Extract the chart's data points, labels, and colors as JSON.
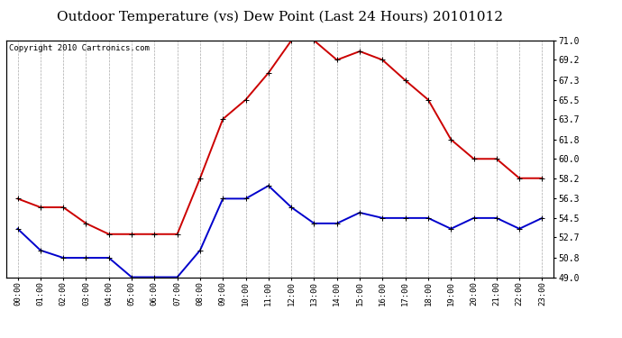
{
  "title": "Outdoor Temperature (vs) Dew Point (Last 24 Hours) 20101012",
  "copyright": "Copyright 2010 Cartronics.com",
  "hours": [
    "00:00",
    "01:00",
    "02:00",
    "03:00",
    "04:00",
    "05:00",
    "06:00",
    "07:00",
    "08:00",
    "09:00",
    "10:00",
    "11:00",
    "12:00",
    "13:00",
    "14:00",
    "15:00",
    "16:00",
    "17:00",
    "18:00",
    "19:00",
    "20:00",
    "21:00",
    "22:00",
    "23:00"
  ],
  "temp": [
    56.3,
    55.5,
    55.5,
    54.0,
    53.0,
    53.0,
    53.0,
    53.0,
    58.2,
    63.7,
    65.5,
    68.0,
    71.0,
    71.0,
    69.2,
    70.0,
    69.2,
    67.3,
    65.5,
    61.8,
    60.0,
    60.0,
    58.2,
    58.2
  ],
  "dew": [
    53.5,
    51.5,
    50.8,
    50.8,
    50.8,
    49.0,
    49.0,
    49.0,
    51.5,
    56.3,
    56.3,
    57.5,
    55.5,
    54.0,
    54.0,
    55.0,
    54.5,
    54.5,
    54.5,
    53.5,
    54.5,
    54.5,
    53.5,
    54.5
  ],
  "temp_color": "#cc0000",
  "dew_color": "#0000cc",
  "bg_color": "#ffffff",
  "grid_color": "#aaaaaa",
  "ylim": [
    49.0,
    71.0
  ],
  "yticks": [
    49.0,
    50.8,
    52.7,
    54.5,
    56.3,
    58.2,
    60.0,
    61.8,
    63.7,
    65.5,
    67.3,
    69.2,
    71.0
  ],
  "ytick_labels": [
    "49.0",
    "50.8",
    "52.7",
    "54.5",
    "56.3",
    "58.2",
    "60.0",
    "61.8",
    "63.7",
    "65.5",
    "67.3",
    "69.2",
    "71.0"
  ],
  "title_fontsize": 11,
  "copyright_fontsize": 6.5,
  "marker": "+",
  "marker_size": 5,
  "line_width": 1.4
}
